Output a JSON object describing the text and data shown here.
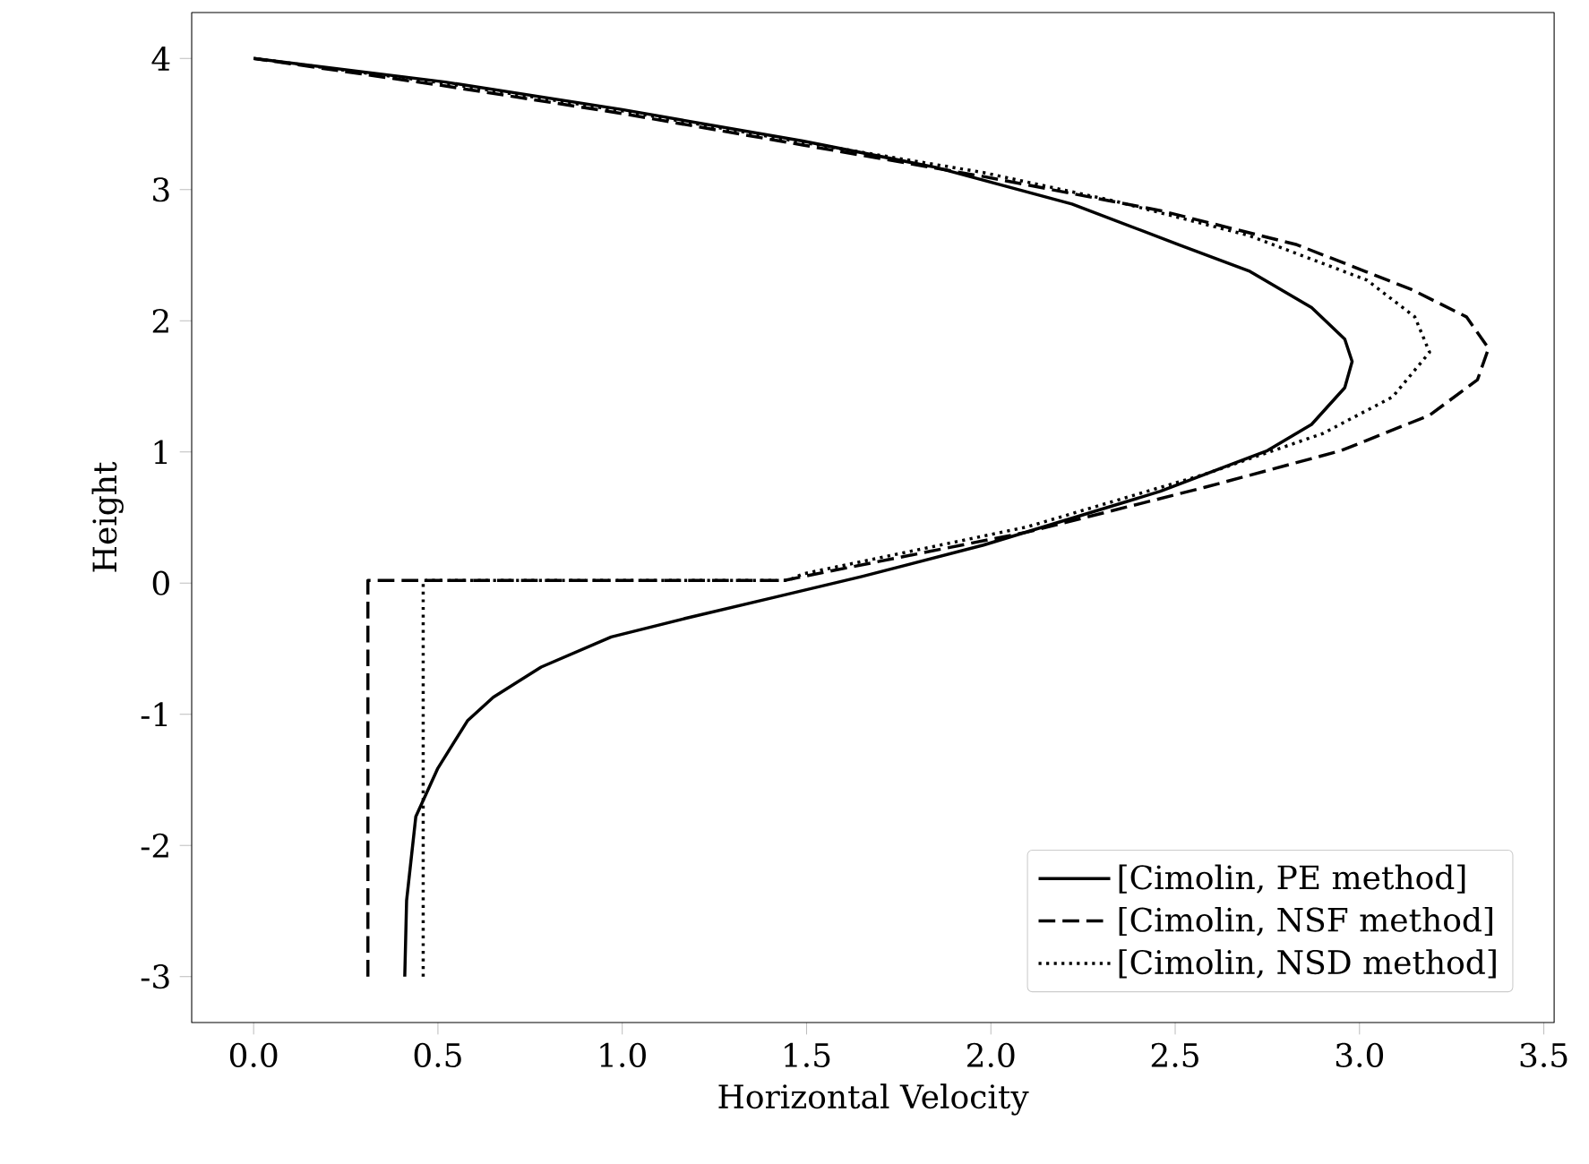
{
  "chart_data": {
    "type": "line",
    "xlabel": "Horizontal Velocity",
    "ylabel": "Height",
    "xlim": [
      -0.168,
      3.528
    ],
    "ylim": [
      -3.35,
      4.35
    ],
    "xticks": [
      {
        "value": 0,
        "label": "0.0"
      },
      0.5,
      {
        "value": 1,
        "label": "1.0"
      },
      1.5,
      {
        "value": 2,
        "label": "2.0"
      },
      2.5,
      {
        "value": 3,
        "label": "3.0"
      },
      3.5
    ],
    "yticks": [
      -3,
      -2,
      -1,
      0,
      1,
      2,
      3,
      4
    ],
    "grid": false,
    "legend": "bottom right",
    "series": [
      {
        "name": "[Cimolin, PE method]",
        "color": "#000000",
        "line_style": "solid",
        "x": [
          0.41,
          0.415,
          0.44,
          0.5,
          0.58,
          0.65,
          0.78,
          0.97,
          1.17,
          1.41,
          1.65,
          1.98,
          2.46,
          2.75,
          2.87,
          2.96,
          2.98,
          2.96,
          2.87,
          2.7,
          2.51,
          2.22,
          1.85,
          1.49,
          1.0,
          0.52,
          0.0
        ],
        "values": [
          -3.0,
          -2.42,
          -1.78,
          -1.41,
          -1.05,
          -0.87,
          -0.64,
          -0.41,
          -0.27,
          -0.11,
          0.05,
          0.29,
          0.7,
          1.01,
          1.21,
          1.49,
          1.69,
          1.86,
          2.1,
          2.38,
          2.58,
          2.89,
          3.17,
          3.37,
          3.61,
          3.82,
          4.0
        ]
      },
      {
        "name": "[Cimolin, NSF method]",
        "color": "#000000",
        "line_style": "dashed",
        "x": [
          0.31,
          0.31,
          1.44,
          1.49,
          2.1,
          2.58,
          2.95,
          3.19,
          3.32,
          3.35,
          3.29,
          3.14,
          2.83,
          2.46,
          1.98,
          1.49,
          1.0,
          0.52,
          0.0
        ],
        "values": [
          -3.0,
          0.02,
          0.02,
          0.05,
          0.39,
          0.73,
          1.01,
          1.28,
          1.55,
          1.79,
          2.03,
          2.24,
          2.58,
          2.84,
          3.1,
          3.34,
          3.58,
          3.79,
          4.0
        ]
      },
      {
        "name": "[Cimolin, NSD method]",
        "color": "#000000",
        "line_style": "dotted",
        "x": [
          0.46,
          0.46,
          1.45,
          1.49,
          2.1,
          2.58,
          2.9,
          3.09,
          3.19,
          3.15,
          3.02,
          2.7,
          2.34,
          1.98,
          1.49,
          1.0,
          0.52,
          0.0
        ],
        "values": [
          -3.0,
          0.02,
          0.02,
          0.07,
          0.43,
          0.83,
          1.14,
          1.42,
          1.76,
          2.03,
          2.31,
          2.65,
          2.91,
          3.13,
          3.36,
          3.6,
          3.81,
          4.0
        ]
      }
    ]
  }
}
